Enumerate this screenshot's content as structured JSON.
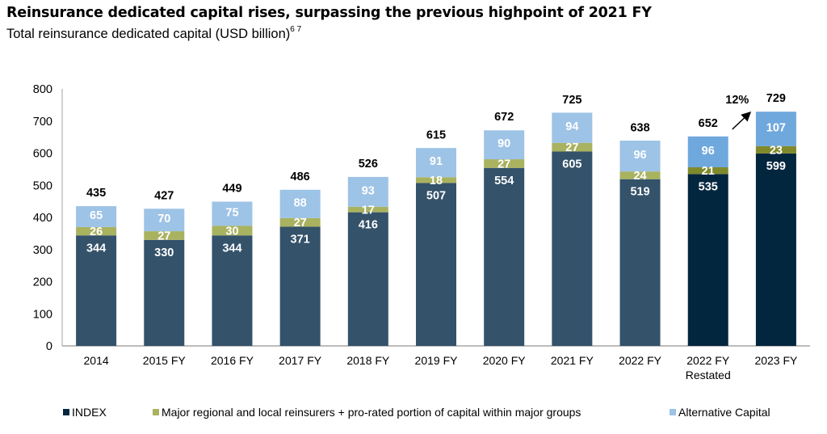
{
  "title": "Reinsurance dedicated capital rises, surpassing the previous highpoint of 2021 FY",
  "subtitle": {
    "text": "Total reinsurance dedicated capital (USD billion)",
    "footnotes": "6 7"
  },
  "colors": {
    "index": "#34526a",
    "index_highlight": "#03263f",
    "major_regional": "#a9b25f",
    "major_regional_highlight": "#7f8a2a",
    "alternative": "#9dc3e6",
    "alternative_highlight": "#6fa8dc"
  },
  "chart_data": {
    "type": "bar",
    "stacked": true,
    "title": "Reinsurance dedicated capital rises, surpassing the previous highpoint of 2021 FY",
    "subtitle": "Total reinsurance dedicated capital (USD billion)",
    "xlabel": "",
    "ylabel": "",
    "ylim": [
      0,
      800
    ],
    "yticks": [
      0,
      100,
      200,
      300,
      400,
      500,
      600,
      700,
      800
    ],
    "grid": false,
    "legend_position": "bottom",
    "categories": [
      "2014",
      "2015 FY",
      "2016 FY",
      "2017 FY",
      "2018 FY",
      "2019 FY",
      "2020 FY",
      "2021 FY",
      "2022 FY",
      "2022 FY\nRestated",
      "2023 FY"
    ],
    "highlighted_categories": [
      "2022 FY\nRestated",
      "2023 FY"
    ],
    "series": [
      {
        "name": "INDEX",
        "values": [
          344,
          330,
          344,
          371,
          416,
          507,
          554,
          605,
          519,
          535,
          599
        ]
      },
      {
        "name": "Major regional and local reinsurers + pro-rated portion of capital within major groups",
        "values": [
          26,
          27,
          30,
          27,
          17,
          18,
          27,
          27,
          24,
          21,
          23
        ]
      },
      {
        "name": "Alternative Capital",
        "values": [
          65,
          70,
          75,
          88,
          93,
          91,
          90,
          94,
          96,
          96,
          107
        ]
      }
    ],
    "totals": [
      435,
      427,
      449,
      486,
      526,
      615,
      672,
      725,
      638,
      652,
      729
    ],
    "annotations": [
      {
        "text": "12%",
        "type": "growth-arrow",
        "from": "2022 FY\nRestated",
        "to": "2023 FY"
      }
    ]
  }
}
